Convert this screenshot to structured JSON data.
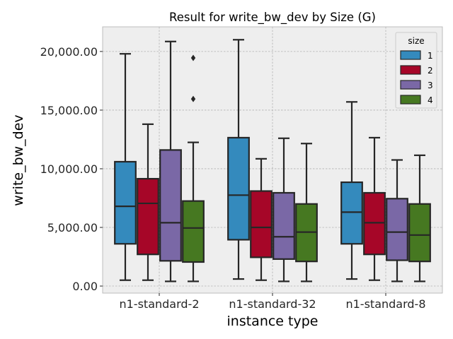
{
  "chart_data": {
    "type": "box",
    "title": "Result for write_bw_dev by Size (G)",
    "xlabel": "instance type",
    "ylabel": "write_bw_dev",
    "categories": [
      "n1-standard-2",
      "n1-standard-32",
      "n1-standard-8"
    ],
    "ylim": [
      -600,
      22100
    ],
    "yticks": [
      0,
      5000,
      10000,
      15000,
      20000
    ],
    "ytick_labels": [
      "0.00",
      "5,000.00",
      "10,000.00",
      "15,000.00",
      "20,000.00"
    ],
    "grid": true,
    "legend": {
      "title": "size",
      "placement": "top-right"
    },
    "series": [
      {
        "name": "1",
        "color": "#348abd",
        "boxes": [
          {
            "whislo": 500,
            "q1": 3600,
            "med": 6800,
            "q3": 10600,
            "whishi": 19800,
            "fliers": []
          },
          {
            "whislo": 600,
            "q1": 3950,
            "med": 7750,
            "q3": 12650,
            "whishi": 21000,
            "fliers": []
          },
          {
            "whislo": 600,
            "q1": 3600,
            "med": 6300,
            "q3": 8850,
            "whishi": 15700,
            "fliers": []
          }
        ]
      },
      {
        "name": "2",
        "color": "#a60628",
        "boxes": [
          {
            "whislo": 500,
            "q1": 2700,
            "med": 7050,
            "q3": 9150,
            "whishi": 13800,
            "fliers": []
          },
          {
            "whislo": 500,
            "q1": 2450,
            "med": 5000,
            "q3": 8100,
            "whishi": 10850,
            "fliers": []
          },
          {
            "whislo": 500,
            "q1": 2700,
            "med": 5400,
            "q3": 7950,
            "whishi": 12650,
            "fliers": []
          }
        ]
      },
      {
        "name": "3",
        "color": "#7a68a6",
        "boxes": [
          {
            "whislo": 400,
            "q1": 2150,
            "med": 5400,
            "q3": 11600,
            "whishi": 20850,
            "fliers": []
          },
          {
            "whislo": 400,
            "q1": 2300,
            "med": 4200,
            "q3": 7950,
            "whishi": 12600,
            "fliers": []
          },
          {
            "whislo": 400,
            "q1": 2200,
            "med": 4600,
            "q3": 7450,
            "whishi": 10750,
            "fliers": []
          }
        ]
      },
      {
        "name": "4",
        "color": "#467821",
        "boxes": [
          {
            "whislo": 400,
            "q1": 2050,
            "med": 4950,
            "q3": 7250,
            "whishi": 12250,
            "fliers": [
              15950,
              19450
            ]
          },
          {
            "whislo": 400,
            "q1": 2100,
            "med": 4600,
            "q3": 7000,
            "whishi": 12150,
            "fliers": []
          },
          {
            "whislo": 400,
            "q1": 2100,
            "med": 4350,
            "q3": 7000,
            "whishi": 11150,
            "fliers": []
          }
        ]
      }
    ]
  }
}
